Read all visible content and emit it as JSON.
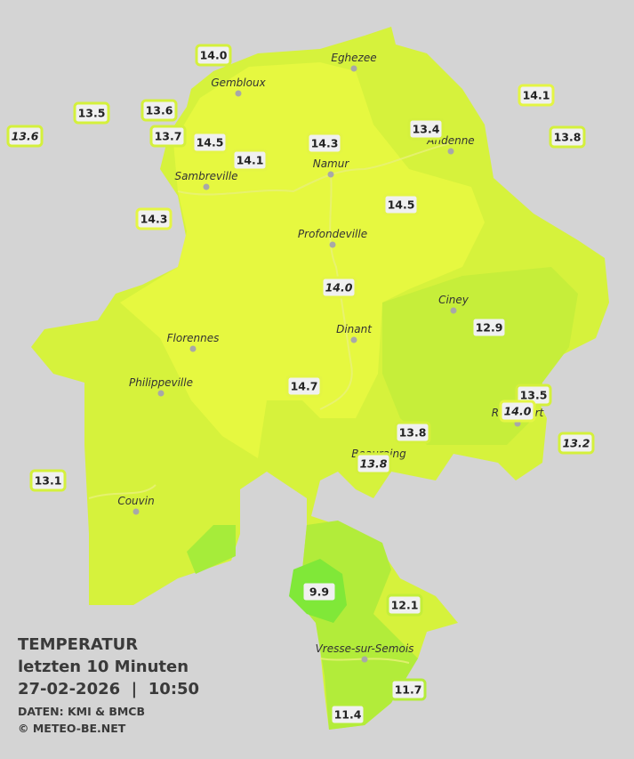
{
  "cities": [
    {
      "name": "Eghezee"
    },
    {
      "name": "Gembloux"
    },
    {
      "name": "Andenne"
    },
    {
      "name": "Namur"
    },
    {
      "name": "Sambreville"
    },
    {
      "name": "Profondeville"
    },
    {
      "name": "Ciney"
    },
    {
      "name": "Florennes"
    },
    {
      "name": "Dinant"
    },
    {
      "name": "Philippeville"
    },
    {
      "name": "Rochefort"
    },
    {
      "name": "Beauraing"
    },
    {
      "name": "Couvin"
    },
    {
      "name": "Vresse-sur-Semois"
    }
  ],
  "stations": [
    {
      "value": "14.0",
      "italic": false,
      "color": "#d4f03c"
    },
    {
      "value": "13.5",
      "italic": false,
      "color": "#d4f03c"
    },
    {
      "value": "13.6",
      "italic": false,
      "color": "#d4f03c"
    },
    {
      "value": "13.6",
      "italic": true,
      "color": "#d4f03c"
    },
    {
      "value": "13.7",
      "italic": false,
      "color": "#d4f03c"
    },
    {
      "value": "14.5",
      "italic": false,
      "color": "#e4f544"
    },
    {
      "value": "14.1",
      "italic": false,
      "color": "#e4f544"
    },
    {
      "value": "14.3",
      "italic": false,
      "color": "#e4f544"
    },
    {
      "value": "13.4",
      "italic": false,
      "color": "#d4f03c"
    },
    {
      "value": "14.1",
      "italic": false,
      "color": "#e4f544"
    },
    {
      "value": "13.8",
      "italic": false,
      "color": "#d4f03c"
    },
    {
      "value": "14.3",
      "italic": false,
      "color": "#e4f544"
    },
    {
      "value": "14.5",
      "italic": false,
      "color": "#e4f544"
    },
    {
      "value": "14.0",
      "italic": true,
      "color": "#e4f544"
    },
    {
      "value": "12.9",
      "italic": false,
      "color": "#c4ee3a"
    },
    {
      "value": "14.7",
      "italic": false,
      "color": "#e4f544"
    },
    {
      "value": "13.5",
      "italic": false,
      "color": "#d4f03c"
    },
    {
      "value": "14.0",
      "italic": true,
      "color": "#e4f544"
    },
    {
      "value": "13.2",
      "italic": true,
      "color": "#d4f03c"
    },
    {
      "value": "13.8",
      "italic": false,
      "color": "#d4f03c"
    },
    {
      "value": "13.8",
      "italic": true,
      "color": "#d4f03c"
    },
    {
      "value": "13.1",
      "italic": false,
      "color": "#d4f03c"
    },
    {
      "value": "9.9",
      "italic": false,
      "color": "#7ee83a"
    },
    {
      "value": "12.1",
      "italic": false,
      "color": "#c4ee3a"
    },
    {
      "value": "11.7",
      "italic": false,
      "color": "#b4ec3a"
    },
    {
      "value": "11.4",
      "italic": false,
      "color": "#b4ec3a"
    }
  ],
  "caption": {
    "title": "TEMPERATUR",
    "period": "letzten 10 Minuten",
    "datetime": "27-02-2026  |  10:50",
    "source": "DATEN: KMI & BMCB",
    "copyright": "© METEO-BE.NET"
  }
}
